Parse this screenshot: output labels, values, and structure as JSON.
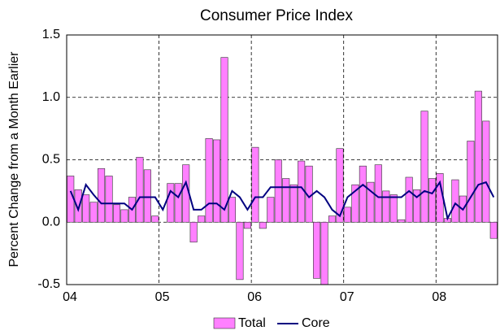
{
  "chart_data": {
    "type": "bar_line",
    "title": "Consumer Price Index",
    "y_label": "Percent Change from a Month Earlier",
    "categories": [
      "04",
      null,
      null,
      null,
      null,
      null,
      null,
      null,
      null,
      null,
      null,
      null,
      "05",
      null,
      null,
      null,
      null,
      null,
      null,
      null,
      null,
      null,
      null,
      null,
      "06",
      null,
      null,
      null,
      null,
      null,
      null,
      null,
      null,
      null,
      null,
      null,
      "07",
      null,
      null,
      null,
      null,
      null,
      null,
      null,
      null,
      null,
      null,
      null,
      "08",
      null,
      null,
      null,
      null,
      null,
      null,
      null
    ],
    "series": [
      {
        "name": "Total",
        "type": "bar",
        "color": "#ff80ff",
        "values": [
          0.37,
          0.26,
          0.22,
          0.16,
          0.43,
          0.37,
          0.14,
          0.1,
          0.2,
          0.52,
          0.42,
          0.05,
          0.0,
          0.31,
          0.31,
          0.46,
          -0.16,
          0.05,
          0.67,
          0.66,
          1.32,
          0.2,
          -0.46,
          -0.05,
          0.6,
          -0.05,
          0.2,
          0.5,
          0.35,
          0.3,
          0.49,
          0.45,
          -0.45,
          -0.5,
          0.05,
          0.59,
          0.12,
          0.3,
          0.45,
          0.32,
          0.46,
          0.25,
          0.22,
          0.02,
          0.36,
          0.26,
          0.89,
          0.35,
          0.39,
          0.03,
          0.34,
          0.21,
          0.65,
          1.05,
          0.81,
          -0.13
        ]
      },
      {
        "name": "Core",
        "type": "line",
        "color": "#000080",
        "values": [
          0.25,
          0.1,
          0.3,
          0.22,
          0.15,
          0.15,
          0.15,
          0.15,
          0.1,
          0.2,
          0.2,
          0.2,
          0.1,
          0.25,
          0.2,
          0.32,
          0.1,
          0.1,
          0.15,
          0.15,
          0.1,
          0.25,
          0.2,
          0.1,
          0.2,
          0.2,
          0.28,
          0.28,
          0.28,
          0.28,
          0.28,
          0.2,
          0.25,
          0.2,
          0.1,
          0.05,
          0.2,
          0.25,
          0.3,
          0.25,
          0.2,
          0.2,
          0.2,
          0.2,
          0.25,
          0.2,
          0.25,
          0.23,
          0.32,
          0.03,
          0.15,
          0.1,
          0.2,
          0.3,
          0.32,
          0.2
        ]
      }
    ],
    "ylim": [
      -0.5,
      1.5
    ],
    "yticks": [
      {
        "value": -0.5,
        "label": "-0.5"
      },
      {
        "value": 0,
        "label": "0.0"
      },
      {
        "value": 0.5,
        "label": "0.5"
      },
      {
        "value": 1,
        "label": "1.0"
      },
      {
        "value": 1.5,
        "label": "1.5"
      }
    ],
    "grid": true,
    "legend": "bottom"
  }
}
